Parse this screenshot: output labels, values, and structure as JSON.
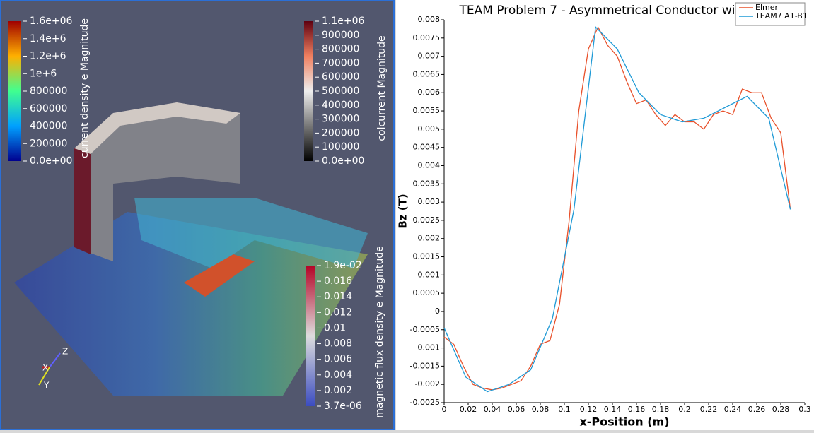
{
  "render_view": {
    "legends": [
      {
        "title": "current density e Magnitude",
        "labels": [
          "1.6e+06",
          "1.4e+6",
          "1.2e+6",
          "1e+6",
          "800000",
          "600000",
          "400000",
          "200000",
          "0.0e+00"
        ]
      },
      {
        "title": "colcurrent Magnitude",
        "labels": [
          "1.1e+06",
          "900000",
          "800000",
          "700000",
          "600000",
          "500000",
          "400000",
          "300000",
          "200000",
          "100000",
          "0.0e+00"
        ]
      },
      {
        "title": "magnetic flux density e Magnitude",
        "labels": [
          "1.9e-02",
          "0.016",
          "0.014",
          "0.012",
          "0.01",
          "0.008",
          "0.006",
          "0.004",
          "0.002",
          "3.7e-06"
        ]
      }
    ],
    "axes": [
      "Z",
      "X",
      "Y"
    ]
  },
  "chart_data": {
    "type": "line",
    "title": "TEAM Problem 7 -  Asymmetrical Conductor with a Hole",
    "x_label": "x-Position (m)",
    "y_label": "Bz (T)",
    "xlim": [
      0,
      0.3
    ],
    "ylim": [
      -0.0025,
      0.008
    ],
    "xticks": [
      0,
      0.02,
      0.04,
      0.06,
      0.08,
      0.1,
      0.12,
      0.14,
      0.16,
      0.18,
      0.2,
      0.22,
      0.24,
      0.26,
      0.28,
      0.3
    ],
    "yticks": [
      -0.0025,
      -0.002,
      -0.0015,
      -0.001,
      -0.0005,
      0,
      0.0005,
      0.001,
      0.0015,
      0.002,
      0.0025,
      0.003,
      0.0035,
      0.004,
      0.0045,
      0.005,
      0.0055,
      0.006,
      0.0065,
      0.007,
      0.0075,
      0.008
    ],
    "legend": "upper right",
    "series": [
      {
        "name": "Elmer",
        "color": "#e8502a",
        "x": [
          0,
          0.008,
          0.016,
          0.024,
          0.032,
          0.04,
          0.048,
          0.056,
          0.064,
          0.072,
          0.08,
          0.088,
          0.096,
          0.104,
          0.112,
          0.12,
          0.128,
          0.136,
          0.144,
          0.152,
          0.16,
          0.168,
          0.176,
          0.184,
          0.192,
          0.2,
          0.208,
          0.216,
          0.224,
          0.232,
          0.24,
          0.248,
          0.256,
          0.264,
          0.272,
          0.28,
          0.288
        ],
        "values": [
          -0.0007,
          -0.0009,
          -0.0015,
          -0.002,
          -0.0021,
          -0.00215,
          -0.0021,
          -0.002,
          -0.0019,
          -0.0015,
          -0.0009,
          -0.0008,
          0.0002,
          0.0025,
          0.0055,
          0.0072,
          0.0078,
          0.0073,
          0.007,
          0.0063,
          0.0057,
          0.0058,
          0.0054,
          0.0051,
          0.0054,
          0.0052,
          0.0052,
          0.005,
          0.0054,
          0.0055,
          0.0054,
          0.0061,
          0.006,
          0.006,
          0.0053,
          0.0049,
          0.0028
        ]
      },
      {
        "name": "TEAM7 A1-B1",
        "color": "#1f9ad6",
        "x": [
          0,
          0.018,
          0.036,
          0.054,
          0.072,
          0.09,
          0.108,
          0.126,
          0.144,
          0.162,
          0.18,
          0.198,
          0.216,
          0.234,
          0.252,
          0.27,
          0.288
        ],
        "values": [
          -0.00045,
          -0.0018,
          -0.0022,
          -0.002,
          -0.0016,
          -0.0002,
          0.0028,
          0.0078,
          0.0072,
          0.006,
          0.0054,
          0.0052,
          0.0053,
          0.0056,
          0.0059,
          0.0053,
          0.0028
        ]
      }
    ]
  }
}
